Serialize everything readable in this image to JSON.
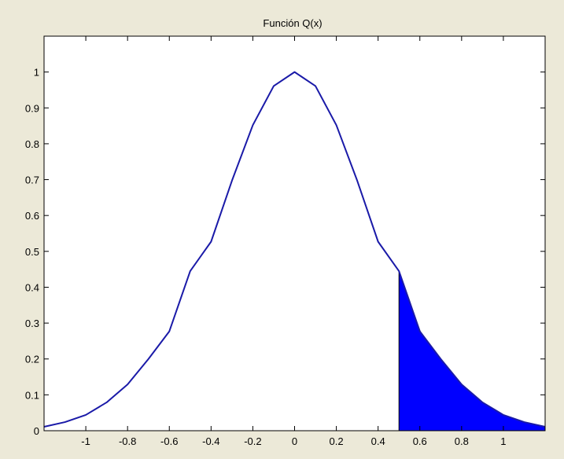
{
  "chart_data": {
    "type": "area",
    "title": "Función Q(x)",
    "xlabel": "",
    "ylabel": "",
    "xlim": [
      -1.2,
      1.2
    ],
    "ylim": [
      0,
      1.1
    ],
    "x_ticks": [
      -1,
      -0.8,
      -0.6,
      -0.4,
      -0.2,
      0,
      0.2,
      0.4,
      0.6,
      0.8,
      1
    ],
    "x_tick_labels": [
      "-1",
      "-0.8",
      "-0.6",
      "-0.4",
      "-0.2",
      "0",
      "0.2",
      "0.4",
      "0.6",
      "0.8",
      "1"
    ],
    "y_ticks": [
      0,
      0.1,
      0.2,
      0.3,
      0.4,
      0.5,
      0.6,
      0.7,
      0.8,
      0.9,
      1
    ],
    "y_tick_labels": [
      "0",
      "0.1",
      "0.2",
      "0.3",
      "0.4",
      "0.5",
      "0.6",
      "0.7",
      "0.8",
      "0.9",
      "1"
    ],
    "grid": false,
    "series": [
      {
        "x": [
          -1.2,
          -1.1,
          -1.0,
          -0.9,
          -0.8,
          -0.7,
          -0.6,
          -0.5,
          -0.4,
          -0.3,
          -0.2,
          -0.1,
          0,
          0.1,
          0.2,
          0.3,
          0.4,
          0.5,
          0.6,
          0.7,
          0.8,
          0.9,
          1.0,
          1.1,
          1.2
        ],
        "y": [
          0.011,
          0.024,
          0.044,
          0.079,
          0.129,
          0.2,
          0.277,
          0.445,
          0.527,
          0.697,
          0.852,
          0.961,
          1.0,
          0.961,
          0.852,
          0.697,
          0.527,
          0.445,
          0.277,
          0.2,
          0.129,
          0.079,
          0.044,
          0.024,
          0.011
        ],
        "color": "#0000ff"
      }
    ],
    "shaded_region": {
      "from_x": 0.5,
      "to_x": 1.2,
      "color": "#0000ff"
    },
    "line_color": "#1a1aa8"
  }
}
